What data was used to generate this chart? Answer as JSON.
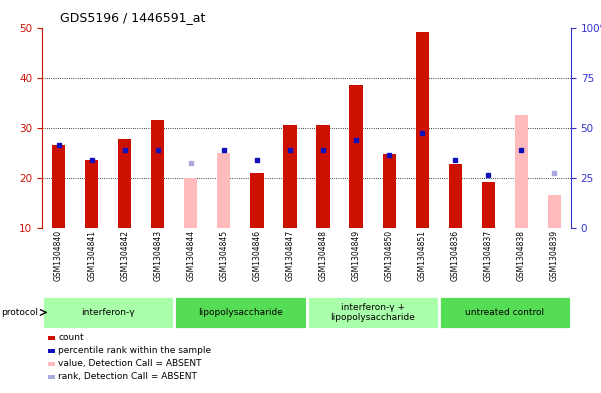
{
  "title": "GDS5196 / 1446591_at",
  "samples": [
    "GSM1304840",
    "GSM1304841",
    "GSM1304842",
    "GSM1304843",
    "GSM1304844",
    "GSM1304845",
    "GSM1304846",
    "GSM1304847",
    "GSM1304848",
    "GSM1304849",
    "GSM1304850",
    "GSM1304851",
    "GSM1304836",
    "GSM1304837",
    "GSM1304838",
    "GSM1304839"
  ],
  "red_bars": [
    26.5,
    23.5,
    27.8,
    31.5,
    null,
    null,
    21.0,
    30.5,
    30.5,
    38.5,
    24.8,
    49.2,
    22.8,
    19.2,
    null,
    null
  ],
  "pink_bars": [
    null,
    null,
    null,
    null,
    20.0,
    25.0,
    null,
    null,
    null,
    null,
    null,
    null,
    null,
    null,
    32.5,
    16.5
  ],
  "blue_squares": [
    26.5,
    23.5,
    25.5,
    25.5,
    null,
    25.5,
    23.5,
    25.5,
    25.5,
    27.5,
    24.5,
    29.0,
    23.5,
    20.5,
    25.5,
    null
  ],
  "lightblue_squares": [
    null,
    null,
    null,
    null,
    23.0,
    null,
    null,
    null,
    null,
    null,
    null,
    null,
    null,
    null,
    null,
    21.0
  ],
  "groups": [
    {
      "label": "interferon-γ",
      "start": 0,
      "end": 4,
      "color": "#aaffaa"
    },
    {
      "label": "lipopolysaccharide",
      "start": 4,
      "end": 8,
      "color": "#55dd55"
    },
    {
      "label": "interferon-γ +\nlipopolysaccharide",
      "start": 8,
      "end": 12,
      "color": "#aaffaa"
    },
    {
      "label": "untreated control",
      "start": 12,
      "end": 16,
      "color": "#55dd55"
    }
  ],
  "ylim_left": [
    10,
    50
  ],
  "ylim_right": [
    0,
    100
  ],
  "yticks_left": [
    10,
    20,
    30,
    40,
    50
  ],
  "yticks_right": [
    0,
    25,
    50,
    75,
    100
  ],
  "bar_width": 0.4,
  "red_color": "#cc1100",
  "pink_color": "#ffbbbb",
  "blue_color": "#1111bb",
  "lightblue_color": "#aaaadd",
  "tick_bg_color": "#cccccc",
  "plot_bg_color": "#ffffff",
  "grid_color": "#000000",
  "legend_items": [
    {
      "color": "#cc1100",
      "label": "count"
    },
    {
      "color": "#1111bb",
      "label": "percentile rank within the sample"
    },
    {
      "color": "#ffbbbb",
      "label": "value, Detection Call = ABSENT"
    },
    {
      "color": "#aaaadd",
      "label": "rank, Detection Call = ABSENT"
    }
  ]
}
